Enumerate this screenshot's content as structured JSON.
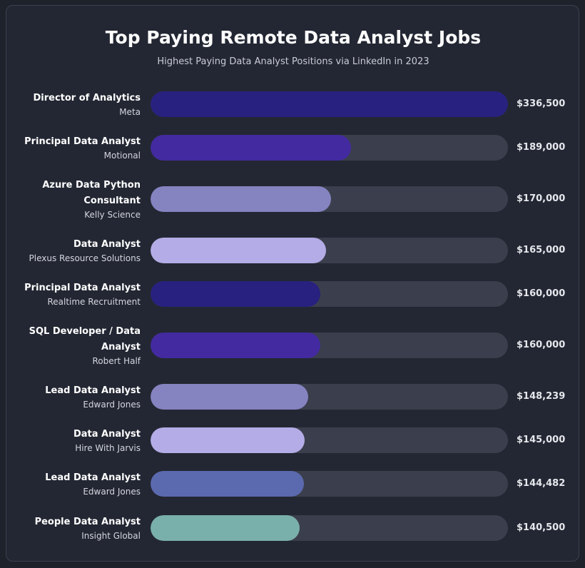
{
  "chart_data": {
    "type": "bar",
    "orientation": "horizontal",
    "title": "Top Paying Remote Data Analyst Jobs",
    "subtitle": "Highest Paying Data Analyst Positions via LinkedIn in 2023",
    "xlim": [
      0,
      336500
    ],
    "grid": false,
    "categories": [
      {
        "job": "Director of Analytics",
        "company": "Meta"
      },
      {
        "job": "Principal Data Analyst",
        "company": "Motional"
      },
      {
        "job": "Azure Data Python Consultant",
        "company": "Kelly Science"
      },
      {
        "job": "Data Analyst",
        "company": "Plexus Resource Solutions"
      },
      {
        "job": "Principal Data Analyst",
        "company": "Realtime Recruitment"
      },
      {
        "job": "SQL Developer / Data Analyst",
        "company": "Robert Half"
      },
      {
        "job": "Lead Data Analyst",
        "company": "Edward Jones"
      },
      {
        "job": "Data Analyst",
        "company": "Hire With Jarvis"
      },
      {
        "job": "Lead Data Analyst",
        "company": "Edward Jones"
      },
      {
        "job": "People Data Analyst",
        "company": "Insight Global"
      }
    ],
    "values": [
      336500,
      189000,
      170000,
      165000,
      160000,
      160000,
      148239,
      145000,
      144482,
      140500
    ],
    "value_labels": [
      "$336,500",
      "$189,000",
      "$170,000",
      "$165,000",
      "$160,000",
      "$160,000",
      "$148,239",
      "$145,000",
      "$144,482",
      "$140,500"
    ],
    "colors": [
      "#28217f",
      "#432aa0",
      "#8583c0",
      "#b3ace6",
      "#28217f",
      "#432aa0",
      "#8583c0",
      "#b3ace6",
      "#5b6aaf",
      "#79b0ab"
    ]
  }
}
